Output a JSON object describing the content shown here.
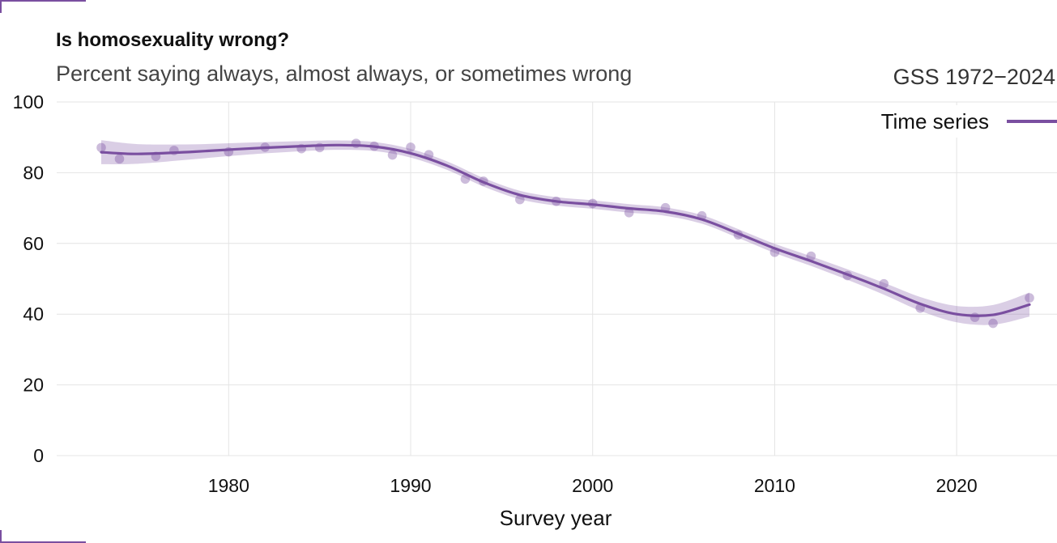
{
  "chart_data": {
    "type": "line",
    "title": "Is homosexuality wrong?",
    "subtitle": "Percent saying always, almost always, or sometimes wrong",
    "source": "GSS 1972−2024",
    "xlabel": "Survey year",
    "ylabel": "",
    "xlim": [
      1973,
      2024
    ],
    "ylim": [
      0,
      100
    ],
    "x_ticks": [
      1980,
      1990,
      2000,
      2010,
      2020
    ],
    "y_ticks": [
      0,
      20,
      40,
      60,
      80,
      100
    ],
    "grid": true,
    "legend_position": "top-right",
    "legend": [
      "Time series"
    ],
    "series": [
      {
        "name": "Time series",
        "color": "#7a4fa0",
        "points": {
          "x": [
            1973,
            1974,
            1976,
            1977,
            1980,
            1982,
            1984,
            1985,
            1987,
            1988,
            1989,
            1990,
            1991,
            1993,
            1994,
            1996,
            1998,
            2000,
            2002,
            2004,
            2006,
            2008,
            2010,
            2012,
            2014,
            2016,
            2018,
            2021,
            2022,
            2024
          ],
          "y": [
            87.1,
            83.9,
            84.6,
            86.3,
            85.9,
            87.2,
            86.8,
            87.1,
            88.3,
            87.5,
            85.0,
            87.2,
            85.1,
            78.2,
            77.6,
            72.4,
            71.9,
            71.3,
            68.7,
            70.1,
            67.8,
            62.4,
            57.5,
            56.4,
            50.9,
            48.6,
            41.7,
            39.1,
            37.4,
            44.6
          ]
        },
        "smooth": {
          "x": [
            1973,
            1975,
            1978,
            1981,
            1984,
            1986,
            1988,
            1990,
            1992,
            1994,
            1996,
            1998,
            2000,
            2002,
            2004,
            2006,
            2008,
            2010,
            2012,
            2014,
            2016,
            2018,
            2020,
            2022,
            2024
          ],
          "y": [
            85.8,
            85.3,
            85.9,
            86.8,
            87.5,
            87.8,
            87.4,
            85.5,
            82.0,
            77.3,
            73.7,
            71.9,
            71.0,
            69.9,
            69.0,
            66.8,
            62.8,
            58.6,
            55.0,
            51.2,
            47.2,
            42.9,
            40.0,
            39.8,
            42.7
          ]
        }
      }
    ]
  }
}
